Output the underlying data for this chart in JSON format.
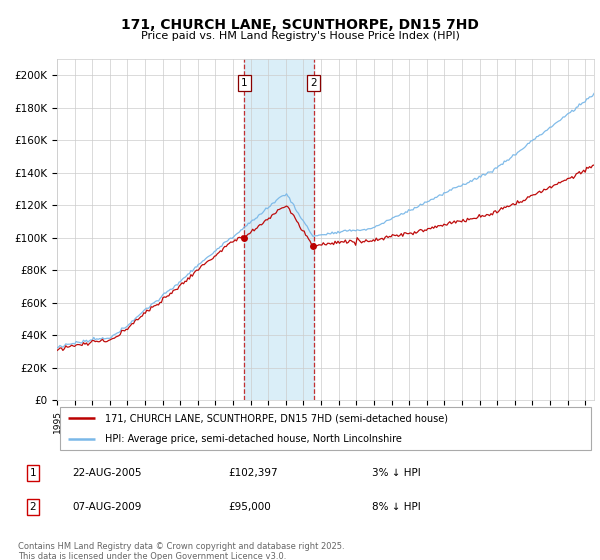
{
  "title": "171, CHURCH LANE, SCUNTHORPE, DN15 7HD",
  "subtitle": "Price paid vs. HM Land Registry's House Price Index (HPI)",
  "ylim": [
    0,
    210000
  ],
  "yticks": [
    0,
    20000,
    40000,
    60000,
    80000,
    100000,
    120000,
    140000,
    160000,
    180000,
    200000
  ],
  "ytick_labels": [
    "£0",
    "£20K",
    "£40K",
    "£60K",
    "£80K",
    "£100K",
    "£120K",
    "£140K",
    "£160K",
    "£180K",
    "£200K"
  ],
  "hpi_color": "#7ab8e8",
  "price_color": "#bb0000",
  "shade_color": "#daeef8",
  "transaction1_date": 2005.63,
  "transaction2_date": 2009.58,
  "legend_line1": "171, CHURCH LANE, SCUNTHORPE, DN15 7HD (semi-detached house)",
  "legend_line2": "HPI: Average price, semi-detached house, North Lincolnshire",
  "table_row1": [
    "1",
    "22-AUG-2005",
    "£102,397",
    "3% ↓ HPI"
  ],
  "table_row2": [
    "2",
    "07-AUG-2009",
    "£95,000",
    "8% ↓ HPI"
  ],
  "footnote": "Contains HM Land Registry data © Crown copyright and database right 2025.\nThis data is licensed under the Open Government Licence v3.0.",
  "bg_color": "#ffffff",
  "grid_color": "#cccccc",
  "transaction1_price": 102397,
  "transaction2_price": 95000
}
